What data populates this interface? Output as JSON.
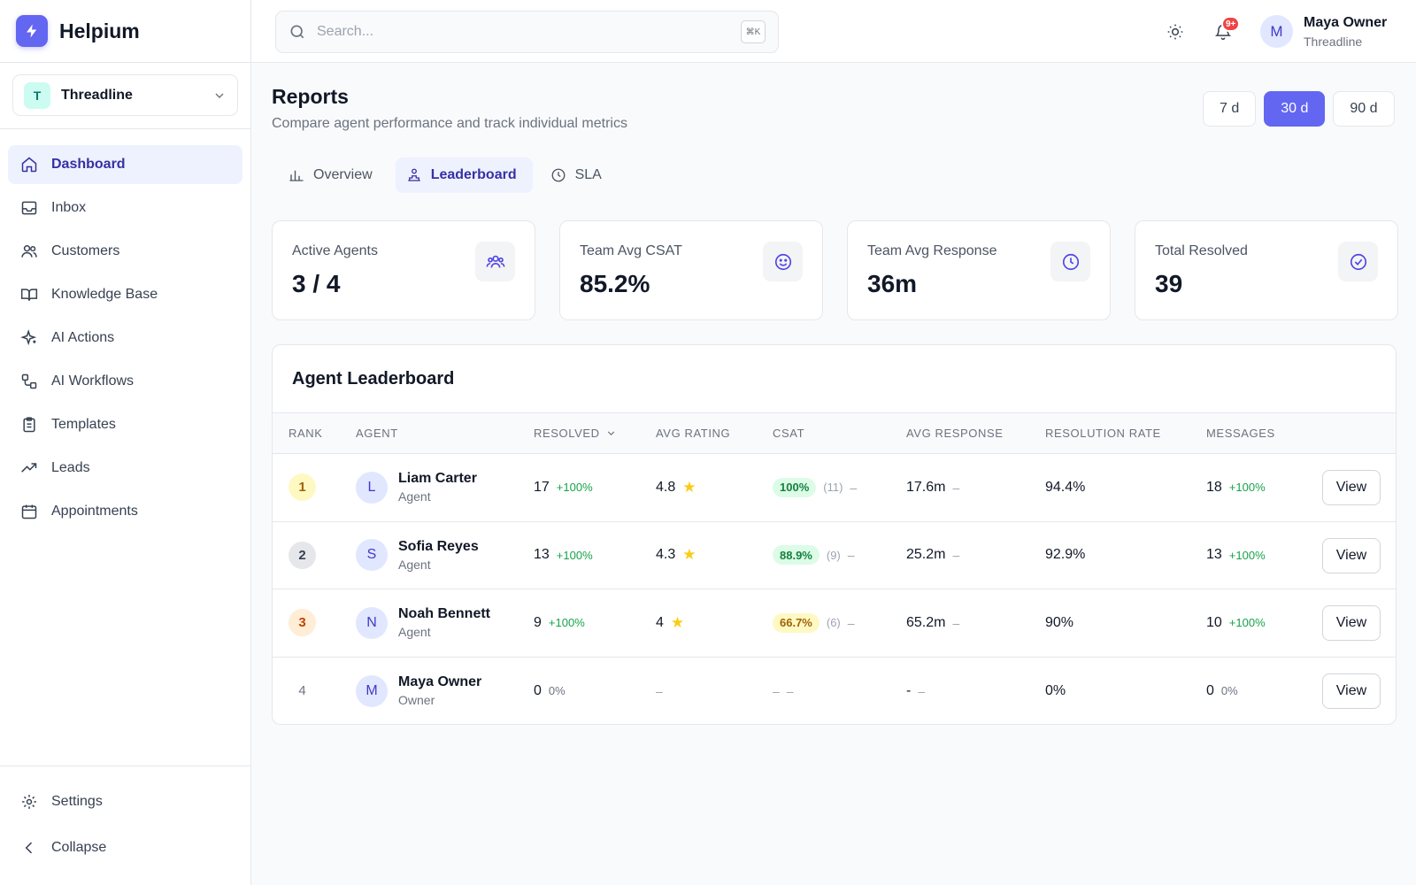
{
  "app": {
    "name": "Helpium"
  },
  "workspace": {
    "initial": "T",
    "name": "Threadline"
  },
  "sidebar": {
    "items": [
      {
        "label": "Dashboard",
        "icon": "home-icon"
      },
      {
        "label": "Inbox",
        "icon": "inbox-icon"
      },
      {
        "label": "Customers",
        "icon": "users-icon"
      },
      {
        "label": "Knowledge Base",
        "icon": "book-icon"
      },
      {
        "label": "AI Actions",
        "icon": "sparkles-icon"
      },
      {
        "label": "AI Workflows",
        "icon": "workflow-icon"
      },
      {
        "label": "Templates",
        "icon": "clipboard-icon"
      },
      {
        "label": "Leads",
        "icon": "trending-up-icon"
      },
      {
        "label": "Appointments",
        "icon": "calendar-icon"
      }
    ],
    "bottom": {
      "settings": "Settings",
      "collapse": "Collapse"
    }
  },
  "header": {
    "search_placeholder": "Search...",
    "shortcut": "⌘K",
    "notifications_badge": "9+",
    "user": {
      "initial": "M",
      "name": "Maya Owner",
      "org": "Threadline"
    }
  },
  "page": {
    "title": "Reports",
    "subtitle": "Compare agent performance and track individual metrics"
  },
  "ranges": {
    "items": [
      "7 d",
      "30 d",
      "90 d"
    ],
    "selected": "30 d"
  },
  "tabs": {
    "items": [
      "Overview",
      "Leaderboard",
      "SLA"
    ],
    "selected": "Leaderboard"
  },
  "stats": [
    {
      "label": "Active Agents",
      "value": "3 / 4",
      "icon": "team-icon"
    },
    {
      "label": "Team Avg CSAT",
      "value": "85.2%",
      "icon": "smile-icon"
    },
    {
      "label": "Team Avg Response",
      "value": "36m",
      "icon": "clock-icon"
    },
    {
      "label": "Total Resolved",
      "value": "39",
      "icon": "check-circle-icon"
    }
  ],
  "leaderboard": {
    "title": "Agent Leaderboard",
    "columns": [
      "Rank",
      "Agent",
      "Resolved",
      "Avg Rating",
      "CSAT",
      "Avg Response",
      "Resolution Rate",
      "Messages"
    ],
    "view_label": "View",
    "rows": [
      {
        "rank": "1",
        "initial": "L",
        "name": "Liam Carter",
        "role": "Agent",
        "resolved": "17",
        "resolved_delta": "+100%",
        "rating": "4.8",
        "csat": "100%",
        "csat_count": "(11)",
        "csat_trend": "–",
        "response": "17.6m",
        "response_trend": "–",
        "resolution_rate": "94.4%",
        "messages": "18",
        "messages_delta": "+100%"
      },
      {
        "rank": "2",
        "initial": "S",
        "name": "Sofia Reyes",
        "role": "Agent",
        "resolved": "13",
        "resolved_delta": "+100%",
        "rating": "4.3",
        "csat": "88.9%",
        "csat_count": "(9)",
        "csat_trend": "–",
        "response": "25.2m",
        "response_trend": "–",
        "resolution_rate": "92.9%",
        "messages": "13",
        "messages_delta": "+100%"
      },
      {
        "rank": "3",
        "initial": "N",
        "name": "Noah Bennett",
        "role": "Agent",
        "resolved": "9",
        "resolved_delta": "+100%",
        "rating": "4",
        "csat": "66.7%",
        "csat_count": "(6)",
        "csat_trend": "–",
        "response": "65.2m",
        "response_trend": "–",
        "resolution_rate": "90%",
        "messages": "10",
        "messages_delta": "+100%"
      },
      {
        "rank": "4",
        "initial": "M",
        "name": "Maya Owner",
        "role": "Owner",
        "resolved": "0",
        "resolved_delta": "0%",
        "rating": "–",
        "csat": "–",
        "csat_trend": "–",
        "response": "-",
        "response_trend": "–",
        "resolution_rate": "0%",
        "messages": "0",
        "messages_delta": "0%"
      }
    ]
  },
  "colors": {
    "accent": "#6366f1",
    "accent_soft": "#eef2ff",
    "positive": "#16a34a",
    "badge": "#ef4444",
    "star": "#facc15"
  }
}
